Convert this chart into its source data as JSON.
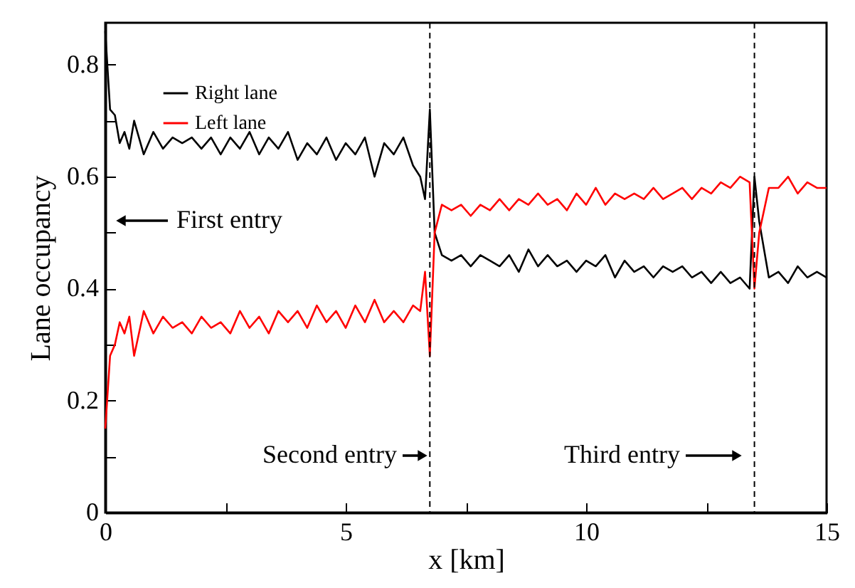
{
  "chart_data": {
    "type": "line",
    "xlabel": "x  [km]",
    "ylabel": "Lane occupancy",
    "x": [
      0,
      0.1,
      0.2,
      0.3,
      0.4,
      0.5,
      0.6,
      0.8,
      1.0,
      1.2,
      1.4,
      1.6,
      1.8,
      2.0,
      2.2,
      2.4,
      2.6,
      2.8,
      3.0,
      3.2,
      3.4,
      3.6,
      3.8,
      4.0,
      4.2,
      4.4,
      4.6,
      4.8,
      5.0,
      5.2,
      5.4,
      5.6,
      5.8,
      6.0,
      6.2,
      6.4,
      6.55,
      6.65,
      6.75,
      6.85,
      7.0,
      7.2,
      7.4,
      7.6,
      7.8,
      8.0,
      8.2,
      8.4,
      8.6,
      8.8,
      9.0,
      9.2,
      9.4,
      9.6,
      9.8,
      10.0,
      10.2,
      10.4,
      10.6,
      10.8,
      11.0,
      11.2,
      11.4,
      11.6,
      11.8,
      12.0,
      12.2,
      12.4,
      12.6,
      12.8,
      13.0,
      13.2,
      13.4,
      13.5,
      13.6,
      13.8,
      14.0,
      14.2,
      14.4,
      14.6,
      14.8,
      15.0
    ],
    "series": [
      {
        "name": "Right lane",
        "color": "#000000",
        "values": [
          0.86,
          0.72,
          0.71,
          0.66,
          0.68,
          0.65,
          0.7,
          0.64,
          0.68,
          0.65,
          0.67,
          0.66,
          0.67,
          0.65,
          0.67,
          0.64,
          0.67,
          0.65,
          0.68,
          0.64,
          0.67,
          0.65,
          0.68,
          0.63,
          0.66,
          0.64,
          0.67,
          0.63,
          0.66,
          0.64,
          0.67,
          0.6,
          0.66,
          0.64,
          0.67,
          0.62,
          0.6,
          0.56,
          0.72,
          0.5,
          0.46,
          0.45,
          0.46,
          0.44,
          0.46,
          0.45,
          0.44,
          0.46,
          0.43,
          0.47,
          0.44,
          0.46,
          0.44,
          0.45,
          0.43,
          0.45,
          0.44,
          0.46,
          0.42,
          0.45,
          0.43,
          0.44,
          0.42,
          0.44,
          0.43,
          0.44,
          0.42,
          0.43,
          0.41,
          0.43,
          0.41,
          0.42,
          0.4,
          0.6,
          0.52,
          0.42,
          0.43,
          0.41,
          0.44,
          0.42,
          0.43,
          0.42
        ]
      },
      {
        "name": "Left lane",
        "color": "#ff0000",
        "values": [
          0.15,
          0.28,
          0.3,
          0.34,
          0.32,
          0.35,
          0.28,
          0.36,
          0.32,
          0.35,
          0.33,
          0.34,
          0.32,
          0.35,
          0.33,
          0.34,
          0.32,
          0.36,
          0.33,
          0.35,
          0.32,
          0.36,
          0.34,
          0.36,
          0.33,
          0.37,
          0.34,
          0.36,
          0.33,
          0.37,
          0.34,
          0.38,
          0.34,
          0.36,
          0.34,
          0.37,
          0.36,
          0.43,
          0.28,
          0.5,
          0.55,
          0.54,
          0.55,
          0.53,
          0.55,
          0.54,
          0.56,
          0.54,
          0.56,
          0.55,
          0.57,
          0.55,
          0.56,
          0.54,
          0.57,
          0.55,
          0.58,
          0.55,
          0.57,
          0.56,
          0.57,
          0.56,
          0.58,
          0.56,
          0.57,
          0.58,
          0.56,
          0.58,
          0.57,
          0.59,
          0.58,
          0.6,
          0.59,
          0.4,
          0.5,
          0.58,
          0.58,
          0.6,
          0.57,
          0.59,
          0.58,
          0.58
        ]
      }
    ],
    "xlim": [
      0,
      15
    ],
    "xticks": [
      0,
      {
        "value": 2.5,
        "label": null
      },
      5,
      {
        "value": 7.5,
        "label": null
      },
      10,
      {
        "value": 12.5,
        "label": null
      },
      15
    ],
    "ylim": [
      0,
      0.875
    ],
    "yticks": [
      0,
      {
        "value": 0.1,
        "label": null
      },
      0.2,
      {
        "value": 0.3,
        "label": null
      },
      0.4,
      {
        "value": 0.5,
        "label": null
      },
      0.6,
      {
        "value": 0.7,
        "label": null
      },
      0.8
    ],
    "ref_lines": [
      {
        "axis": "x",
        "value": 6.75,
        "line_style": "dashed"
      },
      {
        "axis": "x",
        "value": 13.5,
        "line_style": "dashed"
      }
    ],
    "annotations": [
      "First entry",
      "Second entry",
      "Third entry"
    ],
    "legend": "top left"
  }
}
